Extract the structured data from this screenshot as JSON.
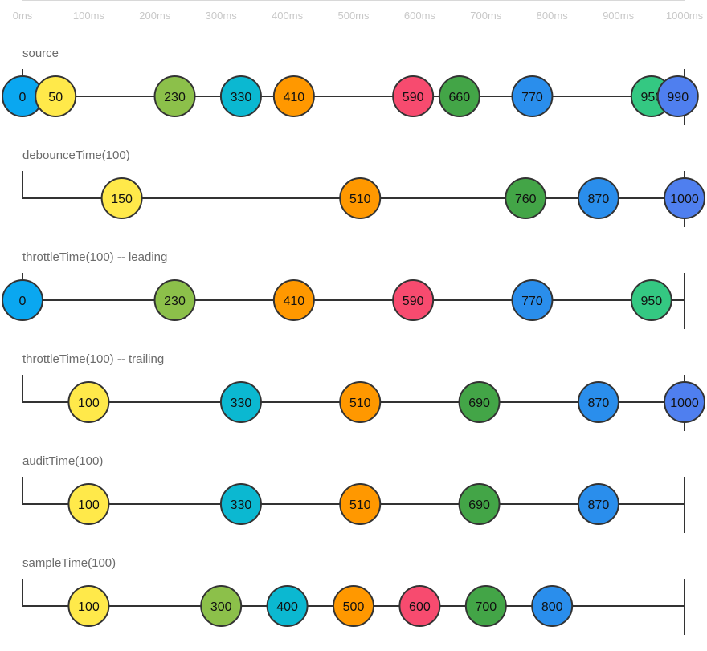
{
  "time_axis": {
    "min": 0,
    "max": 1000,
    "ticks": [
      "0ms",
      "100ms",
      "200ms",
      "300ms",
      "400ms",
      "500ms",
      "600ms",
      "700ms",
      "800ms",
      "900ms",
      "1000ms"
    ]
  },
  "colors": {
    "0": "#0aa7f0",
    "50": "#ffe94a",
    "100": "#ffe94a",
    "150": "#ffe94a",
    "230": "#8cc04a",
    "300": "#8cc04a",
    "330": "#0bb8d1",
    "400": "#0bb8d1",
    "410": "#ff9800",
    "500": "#ff9800",
    "510": "#ff9800",
    "590": "#f74b6f",
    "600": "#f74b6f",
    "660": "#43a547",
    "690": "#43a547",
    "700": "#43a547",
    "760": "#43a547",
    "770": "#2a8eec",
    "800": "#2a8eec",
    "870": "#2a8eec",
    "950": "#34c882",
    "990": "#4f7fef",
    "1000": "#4f7fef"
  },
  "rows": [
    {
      "label": "source",
      "start_tick": true,
      "marbles": [
        0,
        50,
        230,
        330,
        410,
        590,
        660,
        770,
        950,
        990
      ],
      "labels": [
        "0",
        "50",
        "230",
        "330",
        "410",
        "590",
        "660",
        "770",
        "950",
        "990"
      ]
    },
    {
      "label": "debounceTime(100)",
      "start_tick": true,
      "marbles": [
        150,
        510,
        760,
        870,
        1000
      ],
      "labels": [
        "150",
        "510",
        "760",
        "870",
        "1000"
      ]
    },
    {
      "label": "throttleTime(100) -- leading",
      "start_tick": true,
      "marbles": [
        0,
        230,
        410,
        590,
        770,
        950
      ],
      "labels": [
        "0",
        "230",
        "410",
        "590",
        "770",
        "950"
      ]
    },
    {
      "label": "throttleTime(100) -- trailing",
      "start_tick": true,
      "marbles": [
        100,
        330,
        510,
        690,
        870,
        1000
      ],
      "labels": [
        "100",
        "330",
        "510",
        "690",
        "870",
        "1000"
      ]
    },
    {
      "label": "auditTime(100)",
      "start_tick": true,
      "marbles": [
        100,
        330,
        510,
        690,
        870
      ],
      "labels": [
        "100",
        "330",
        "510",
        "690",
        "870"
      ]
    },
    {
      "label": "sampleTime(100)",
      "start_tick": true,
      "marbles": [
        100,
        300,
        400,
        500,
        600,
        700,
        800
      ],
      "labels": [
        "100",
        "300",
        "400",
        "500",
        "600",
        "700",
        "800"
      ]
    }
  ]
}
